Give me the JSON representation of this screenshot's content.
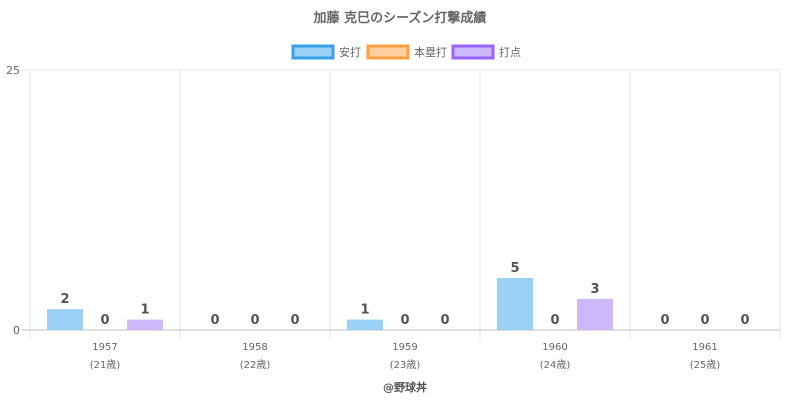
{
  "chart_data": {
    "type": "bar",
    "title": "加藤 克巳のシーズン打撃成績",
    "categories": [
      {
        "year": "1957",
        "age": "(21歳)"
      },
      {
        "year": "1958",
        "age": "(22歳)"
      },
      {
        "year": "1959",
        "age": "(23歳)"
      },
      {
        "year": "1960",
        "age": "(24歳)"
      },
      {
        "year": "1961",
        "age": "(25歳)"
      }
    ],
    "series": [
      {
        "name": "安打",
        "values": [
          2,
          0,
          1,
          5,
          0
        ],
        "color": "#9ad0f5",
        "border": "#36a2eb"
      },
      {
        "name": "本塁打",
        "values": [
          0,
          0,
          0,
          0,
          0
        ],
        "color": "#ffcf9f",
        "border": "#ff9f40"
      },
      {
        "name": "打点",
        "values": [
          1,
          0,
          0,
          3,
          0
        ],
        "color": "#cdb8fb",
        "border": "#9966ff"
      }
    ],
    "yticks": [
      "0",
      "25"
    ],
    "ylim": [
      0,
      25
    ],
    "grid": true,
    "legend": "top",
    "footer": "@野球丼"
  }
}
